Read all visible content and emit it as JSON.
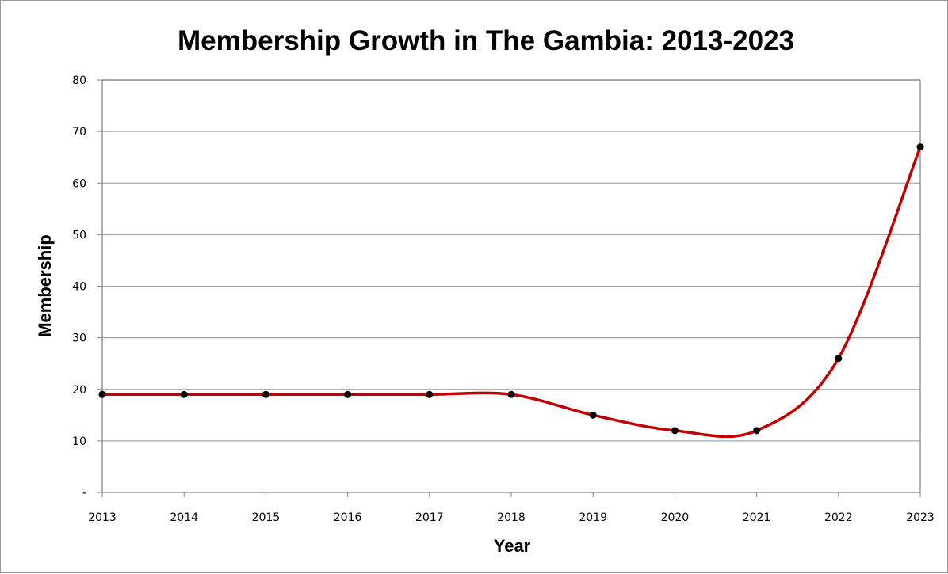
{
  "chart_data": {
    "type": "line",
    "title": "Membership Growth in The Gambia: 2013-2023",
    "xlabel": "Year",
    "ylabel": "Membership",
    "categories": [
      "2013",
      "2014",
      "2015",
      "2016",
      "2017",
      "2018",
      "2019",
      "2020",
      "2021",
      "2022",
      "2023"
    ],
    "series": [
      {
        "values": [
          19,
          19,
          19,
          19,
          19,
          19,
          15,
          12,
          12,
          26,
          67
        ]
      }
    ],
    "ylim": [
      0,
      80
    ],
    "yticks": [
      0,
      10,
      20,
      30,
      40,
      50,
      60,
      70,
      80
    ],
    "ytick_labels": [
      "-",
      "10",
      "20",
      "30",
      "40",
      "50",
      "60",
      "70",
      "80"
    ],
    "grid": "horizontal",
    "smooth": true,
    "colors": {
      "line": "#c00000",
      "marker": "#000000",
      "grid": "#a6a6a6",
      "axis": "#808080"
    }
  }
}
